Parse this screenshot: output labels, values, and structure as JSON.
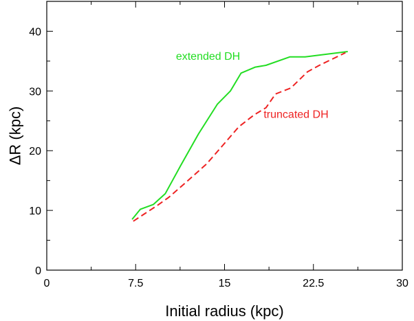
{
  "chart_data": {
    "type": "line",
    "title": "",
    "xlabel": "Initial radius (kpc)",
    "ylabel": "ΔR (kpc)",
    "xlim": [
      0,
      30
    ],
    "ylim": [
      0,
      45
    ],
    "x_ticks": [
      0,
      7.5,
      15,
      22.5,
      30
    ],
    "x_tick_labels": [
      "0",
      "7.5",
      "15",
      "22.5",
      "30"
    ],
    "y_ticks": [
      0,
      10,
      20,
      30,
      40
    ],
    "y_tick_labels": [
      "0",
      "10",
      "20",
      "30",
      "40"
    ],
    "grid": false,
    "annotations": [
      {
        "text": "extended DH",
        "color": "#22dd22",
        "x": 10.9,
        "y": 35.2
      },
      {
        "text": "truncated DH",
        "color": "#ee2222",
        "x": 18.3,
        "y": 25.5
      }
    ],
    "series": [
      {
        "name": "extended DH",
        "color": "#22dd22",
        "dash": "solid",
        "x": [
          7.2,
          7.9,
          9.0,
          10.0,
          11.3,
          12.8,
          14.4,
          15.5,
          16.4,
          17.6,
          18.5,
          20.5,
          21.8,
          25.4
        ],
        "y": [
          8.5,
          10.2,
          11.0,
          12.8,
          17.5,
          22.8,
          27.8,
          30.0,
          33.0,
          34.0,
          34.3,
          35.7,
          35.7,
          36.6
        ]
      },
      {
        "name": "truncated DH",
        "color": "#ee2222",
        "dash": "dashed",
        "x": [
          7.3,
          8.3,
          9.3,
          10.3,
          11.8,
          13.5,
          14.9,
          16.2,
          17.5,
          18.5,
          19.3,
          20.6,
          22.0,
          23.0,
          25.2
        ],
        "y": [
          8.2,
          9.5,
          10.8,
          12.2,
          14.8,
          17.8,
          21.0,
          24.0,
          26.0,
          27.2,
          29.5,
          30.5,
          33.2,
          34.3,
          36.4
        ]
      }
    ]
  }
}
